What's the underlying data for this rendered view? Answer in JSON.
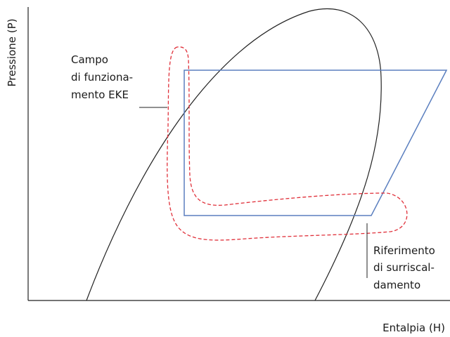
{
  "axes": {
    "y_label": "Pressione (P)",
    "x_label": "Entalpia (H)"
  },
  "annotations": [
    {
      "lines": [
        "Campo",
        "di funziona-",
        "mento EKE"
      ]
    },
    {
      "lines": [
        "Riferimento",
        "di surriscal-",
        "damento"
      ]
    }
  ]
}
